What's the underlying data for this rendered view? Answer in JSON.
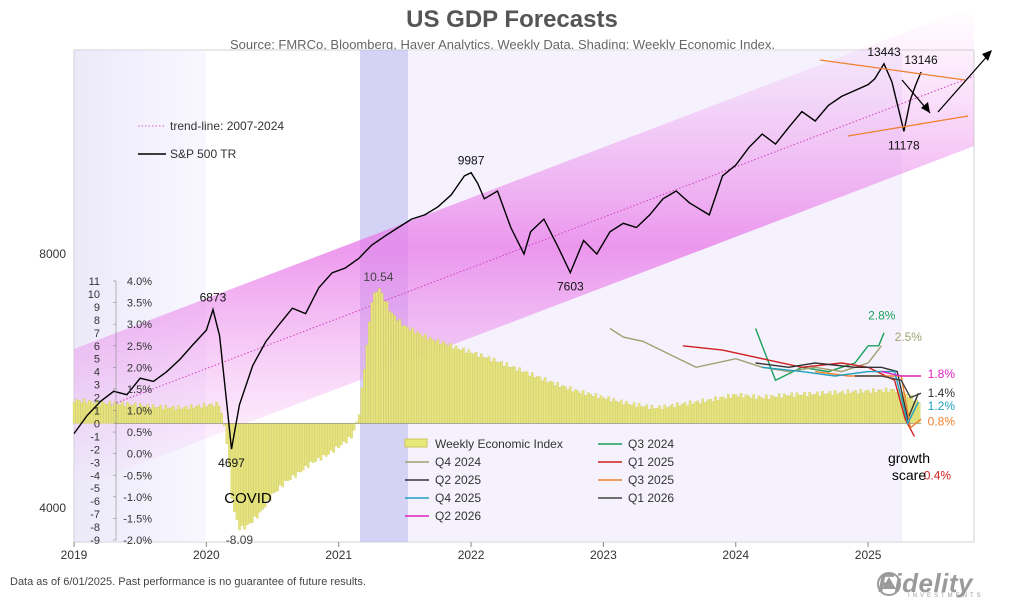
{
  "header": {
    "title": "US GDP Forecasts",
    "subtitle": "Source: FMRCo, Bloomberg, Haver Analytics. Weekly Data. Shading: Weekly Economic Index."
  },
  "footer": {
    "note": "Data as of 6/01/2025. Past performance is no guarantee of future results.",
    "brand": "Fidelity",
    "brand_sub": "INVESTMENTS"
  },
  "chart_data": {
    "type": "line",
    "title": "US GDP Forecasts",
    "x_ticks": [
      "2019",
      "2020",
      "2021",
      "2022",
      "2023",
      "2024",
      "2025"
    ],
    "x_range": [
      2019.0,
      2025.8
    ],
    "spx_axis": {
      "ticks": [
        "8000",
        "4000"
      ]
    },
    "wei_axis": {
      "ticks": [
        "11",
        "10",
        "9",
        "8",
        "7",
        "6",
        "5",
        "4",
        "3",
        "2",
        "1",
        "0",
        "-1",
        "-2",
        "-3",
        "-4",
        "-5",
        "-6",
        "-7",
        "-8",
        "-9"
      ],
      "range": [
        -9,
        11
      ]
    },
    "gdp_axis": {
      "ticks": [
        "4.0%",
        "3.5%",
        "3.0%",
        "2.5%",
        "2.0%",
        "1.5%",
        "1.0%",
        "0.5%",
        "0.0%",
        "-0.5%",
        "-1.0%",
        "-1.5%",
        "-2.0%"
      ],
      "range": [
        -2.0,
        4.0
      ]
    },
    "legend_upper": [
      {
        "name": "trend-line: 2007-2024",
        "color": "#e060c8",
        "style": "dotted"
      },
      {
        "name": "S&P 500 TR",
        "color": "#000000",
        "style": "solid"
      }
    ],
    "legend_lower": [
      {
        "name": "Weekly Economic Index",
        "color": "#e8e878",
        "style": "bar"
      },
      {
        "name": "Q3 2024",
        "color": "#1aa05a",
        "style": "solid"
      },
      {
        "name": "Q4 2024",
        "color": "#a0a070",
        "style": "solid"
      },
      {
        "name": "Q1 2025",
        "color": "#d02020",
        "style": "solid"
      },
      {
        "name": "Q2 2025",
        "color": "#333333",
        "style": "solid"
      },
      {
        "name": "Q3 2025",
        "color": "#f08030",
        "style": "solid"
      },
      {
        "name": "Q4 2025",
        "color": "#20a0c0",
        "style": "solid"
      },
      {
        "name": "Q1 2026",
        "color": "#444444",
        "style": "solid"
      },
      {
        "name": "Q2 2026",
        "color": "#e020c0",
        "style": "solid"
      }
    ],
    "spx_series": [
      [
        2019.0,
        4900
      ],
      [
        2019.1,
        5150
      ],
      [
        2019.2,
        5350
      ],
      [
        2019.3,
        5500
      ],
      [
        2019.4,
        5450
      ],
      [
        2019.5,
        5700
      ],
      [
        2019.6,
        5650
      ],
      [
        2019.7,
        5800
      ],
      [
        2019.8,
        6000
      ],
      [
        2019.9,
        6250
      ],
      [
        2020.0,
        6500
      ],
      [
        2020.05,
        6873
      ],
      [
        2020.1,
        6400
      ],
      [
        2020.15,
        5400
      ],
      [
        2020.19,
        4697
      ],
      [
        2020.25,
        5300
      ],
      [
        2020.35,
        5900
      ],
      [
        2020.45,
        6300
      ],
      [
        2020.55,
        6600
      ],
      [
        2020.65,
        6900
      ],
      [
        2020.75,
        6800
      ],
      [
        2020.85,
        7300
      ],
      [
        2020.95,
        7600
      ],
      [
        2021.05,
        7700
      ],
      [
        2021.15,
        7900
      ],
      [
        2021.25,
        8200
      ],
      [
        2021.35,
        8400
      ],
      [
        2021.45,
        8600
      ],
      [
        2021.55,
        8800
      ],
      [
        2021.65,
        8900
      ],
      [
        2021.75,
        9100
      ],
      [
        2021.85,
        9400
      ],
      [
        2021.95,
        9900
      ],
      [
        2022.0,
        9987
      ],
      [
        2022.05,
        9700
      ],
      [
        2022.1,
        9300
      ],
      [
        2022.2,
        9500
      ],
      [
        2022.3,
        8600
      ],
      [
        2022.4,
        8000
      ],
      [
        2022.45,
        8500
      ],
      [
        2022.55,
        8800
      ],
      [
        2022.65,
        8200
      ],
      [
        2022.75,
        7603
      ],
      [
        2022.85,
        8300
      ],
      [
        2022.95,
        8000
      ],
      [
        2023.05,
        8500
      ],
      [
        2023.15,
        8700
      ],
      [
        2023.25,
        8600
      ],
      [
        2023.35,
        8900
      ],
      [
        2023.45,
        9300
      ],
      [
        2023.55,
        9500
      ],
      [
        2023.65,
        9200
      ],
      [
        2023.8,
        8900
      ],
      [
        2023.9,
        9900
      ],
      [
        2024.0,
        10200
      ],
      [
        2024.1,
        10700
      ],
      [
        2024.2,
        11100
      ],
      [
        2024.3,
        10800
      ],
      [
        2024.4,
        11300
      ],
      [
        2024.5,
        11800
      ],
      [
        2024.6,
        11500
      ],
      [
        2024.7,
        12000
      ],
      [
        2024.8,
        12300
      ],
      [
        2024.9,
        12500
      ],
      [
        2025.0,
        12700
      ],
      [
        2025.05,
        12900
      ],
      [
        2025.12,
        13443
      ],
      [
        2025.18,
        12800
      ],
      [
        2025.24,
        11700
      ],
      [
        2025.27,
        11178
      ],
      [
        2025.32,
        12200
      ],
      [
        2025.36,
        12700
      ],
      [
        2025.4,
        13146
      ]
    ],
    "spx_labels": [
      {
        "text": "6873",
        "x": 2020.05,
        "y": 6873,
        "pos": "above"
      },
      {
        "text": "4697",
        "x": 2020.19,
        "y": 4697,
        "pos": "below"
      },
      {
        "text": "9987",
        "x": 2022.0,
        "y": 9987,
        "pos": "above"
      },
      {
        "text": "7603",
        "x": 2022.75,
        "y": 7603,
        "pos": "below"
      },
      {
        "text": "13443",
        "x": 2025.12,
        "y": 13443,
        "pos": "above"
      },
      {
        "text": "13146",
        "x": 2025.4,
        "y": 13146,
        "pos": "above"
      },
      {
        "text": "11178",
        "x": 2025.27,
        "y": 11178,
        "pos": "below"
      }
    ],
    "trend_line": [
      [
        2019.0,
        5100
      ],
      [
        2025.8,
        13000
      ]
    ],
    "wei_series": [
      [
        2019.0,
        1.8
      ],
      [
        2019.2,
        1.6
      ],
      [
        2019.4,
        1.5
      ],
      [
        2019.6,
        1.3
      ],
      [
        2019.8,
        1.2
      ],
      [
        2020.0,
        1.4
      ],
      [
        2020.1,
        1.5
      ],
      [
        2020.15,
        -1.0
      ],
      [
        2020.2,
        -6.5
      ],
      [
        2020.25,
        -8.09
      ],
      [
        2020.3,
        -8.0
      ],
      [
        2020.4,
        -7.0
      ],
      [
        2020.5,
        -5.5
      ],
      [
        2020.6,
        -4.5
      ],
      [
        2020.7,
        -3.8
      ],
      [
        2020.8,
        -3.0
      ],
      [
        2020.9,
        -2.5
      ],
      [
        2021.0,
        -1.8
      ],
      [
        2021.1,
        -1.0
      ],
      [
        2021.15,
        0.5
      ],
      [
        2021.2,
        5.0
      ],
      [
        2021.25,
        9.5
      ],
      [
        2021.3,
        10.54
      ],
      [
        2021.4,
        8.5
      ],
      [
        2021.5,
        7.5
      ],
      [
        2021.6,
        7.0
      ],
      [
        2021.7,
        6.5
      ],
      [
        2021.8,
        6.2
      ],
      [
        2021.9,
        5.8
      ],
      [
        2022.0,
        5.5
      ],
      [
        2022.2,
        4.8
      ],
      [
        2022.4,
        4.0
      ],
      [
        2022.6,
        3.2
      ],
      [
        2022.8,
        2.5
      ],
      [
        2023.0,
        2.0
      ],
      [
        2023.2,
        1.5
      ],
      [
        2023.4,
        1.2
      ],
      [
        2023.6,
        1.5
      ],
      [
        2023.8,
        1.8
      ],
      [
        2024.0,
        2.2
      ],
      [
        2024.2,
        2.0
      ],
      [
        2024.4,
        2.2
      ],
      [
        2024.6,
        2.3
      ],
      [
        2024.8,
        2.4
      ],
      [
        2025.0,
        2.5
      ],
      [
        2025.2,
        2.6
      ],
      [
        2025.3,
        2.2
      ],
      [
        2025.4,
        1.5
      ]
    ],
    "wei_labels": [
      {
        "text": "10.54",
        "x": 2021.3,
        "y": 10.54
      },
      {
        "text": "-8.09",
        "x": 2020.25,
        "y": -8.09
      }
    ],
    "gdp_series": [
      {
        "name": "Q3 2024",
        "color": "#1aa05a",
        "points": [
          [
            2024.15,
            2.9
          ],
          [
            2024.3,
            1.7
          ],
          [
            2024.5,
            2.0
          ],
          [
            2024.7,
            1.9
          ],
          [
            2024.9,
            2.1
          ],
          [
            2025.0,
            2.5
          ],
          [
            2025.08,
            2.5
          ],
          [
            2025.12,
            2.8
          ]
        ],
        "end_label": "2.8%",
        "label_x": 2025.0,
        "label_val": 3.2
      },
      {
        "name": "Q4 2024",
        "color": "#a0a070",
        "points": [
          [
            2023.05,
            2.9
          ],
          [
            2023.15,
            2.7
          ],
          [
            2023.3,
            2.6
          ],
          [
            2023.5,
            2.3
          ],
          [
            2023.7,
            2.0
          ],
          [
            2024.0,
            2.2
          ],
          [
            2024.2,
            2.0
          ],
          [
            2024.4,
            1.9
          ],
          [
            2024.6,
            2.0
          ],
          [
            2024.8,
            1.9
          ],
          [
            2025.0,
            2.1
          ],
          [
            2025.1,
            2.5
          ]
        ],
        "end_label": "2.5%",
        "label_x": 2025.2,
        "label_val": 2.7
      },
      {
        "name": "Q1 2025",
        "color": "#d02020",
        "points": [
          [
            2023.6,
            2.5
          ],
          [
            2023.9,
            2.4
          ],
          [
            2024.2,
            2.2
          ],
          [
            2024.5,
            2.0
          ],
          [
            2024.8,
            2.1
          ],
          [
            2025.0,
            2.0
          ],
          [
            2025.2,
            1.7
          ],
          [
            2025.28,
            0.8
          ],
          [
            2025.35,
            0.4
          ]
        ],
        "end_label": "0.4%",
        "label_x": 2025.42,
        "label_val": -0.5
      },
      {
        "name": "Q2 2025",
        "color": "#333333",
        "points": [
          [
            2024.15,
            2.1
          ],
          [
            2024.4,
            2.0
          ],
          [
            2024.6,
            2.1
          ],
          [
            2024.9,
            2.0
          ],
          [
            2025.1,
            2.0
          ],
          [
            2025.22,
            1.9
          ],
          [
            2025.3,
            0.8
          ],
          [
            2025.38,
            1.4
          ]
        ],
        "end_label": "1.4%",
        "label_x": 2025.45,
        "label_val": 1.4
      },
      {
        "name": "Q3 2025",
        "color": "#f08030",
        "points": [
          [
            2024.6,
            1.9
          ],
          [
            2024.85,
            1.8
          ],
          [
            2025.1,
            1.8
          ],
          [
            2025.25,
            1.8
          ],
          [
            2025.32,
            0.6
          ],
          [
            2025.4,
            0.8
          ]
        ],
        "end_label": "0.8%",
        "label_x": 2025.45,
        "label_val": 0.75
      },
      {
        "name": "Q4 2025",
        "color": "#20a0c0",
        "points": [
          [
            2024.2,
            2.0
          ],
          [
            2024.5,
            1.9
          ],
          [
            2024.75,
            1.8
          ],
          [
            2025.0,
            1.9
          ],
          [
            2025.2,
            1.9
          ],
          [
            2025.3,
            0.7
          ],
          [
            2025.38,
            1.2
          ]
        ],
        "end_label": "1.2%",
        "label_x": 2025.45,
        "label_val": 1.1
      },
      {
        "name": "Q1 2026",
        "color": "#444444",
        "points": [
          [
            2024.9,
            1.8
          ],
          [
            2025.1,
            1.8
          ],
          [
            2025.25,
            1.7
          ],
          [
            2025.32,
            1.3
          ],
          [
            2025.4,
            1.4
          ]
        ],
        "end_label": "",
        "label_x": 2025.4,
        "label_val": 1.4
      },
      {
        "name": "Q2 2026",
        "color": "#e020c0",
        "points": [
          [
            2025.1,
            1.9
          ],
          [
            2025.25,
            1.8
          ],
          [
            2025.4,
            1.8
          ]
        ],
        "end_label": "1.8%",
        "label_x": 2025.45,
        "label_val": 1.85
      }
    ],
    "annotations": {
      "covid": "COVID",
      "growth_scare_1": "growth",
      "growth_scare_2": "scare"
    }
  }
}
